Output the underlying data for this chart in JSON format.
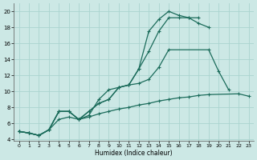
{
  "xlabel": "Humidex (Indice chaleur)",
  "background_color": "#cce8e5",
  "grid_color": "#aad4cf",
  "line_color": "#1a6b5a",
  "xlim": [
    -0.5,
    23.5
  ],
  "ylim": [
    3.8,
    21.0
  ],
  "yticks": [
    4,
    6,
    8,
    10,
    12,
    14,
    16,
    18,
    20
  ],
  "xticks": [
    0,
    1,
    2,
    3,
    4,
    5,
    6,
    7,
    8,
    9,
    10,
    11,
    12,
    13,
    14,
    15,
    16,
    17,
    18,
    19,
    20,
    21,
    22,
    23
  ],
  "series": [
    {
      "x": [
        0,
        1,
        2,
        3,
        4,
        5,
        6,
        7,
        8,
        9,
        10,
        11,
        12,
        13,
        14,
        15,
        16,
        17,
        18
      ],
      "y": [
        5.0,
        4.8,
        4.5,
        5.2,
        7.5,
        7.5,
        6.5,
        7.5,
        8.5,
        9.0,
        10.5,
        10.8,
        12.8,
        17.5,
        19.0,
        20.0,
        19.5,
        19.2,
        19.2
      ]
    },
    {
      "x": [
        0,
        1,
        2,
        3,
        4,
        5,
        6,
        7,
        8,
        9,
        10,
        11,
        12,
        13,
        14,
        15,
        16,
        17,
        18,
        19
      ],
      "y": [
        5.0,
        4.8,
        4.5,
        5.2,
        7.5,
        7.5,
        6.5,
        7.5,
        8.5,
        9.0,
        10.5,
        10.8,
        12.8,
        15.0,
        17.5,
        19.2,
        19.2,
        19.2,
        18.5,
        18.0
      ]
    },
    {
      "x": [
        0,
        1,
        2,
        3,
        4,
        5,
        6,
        7,
        8,
        9,
        10,
        11,
        12,
        13,
        14,
        15,
        19,
        20,
        21
      ],
      "y": [
        5.0,
        4.8,
        4.5,
        5.2,
        7.5,
        7.5,
        6.5,
        7.0,
        9.0,
        10.2,
        10.5,
        10.8,
        11.0,
        11.5,
        13.0,
        15.2,
        15.2,
        12.5,
        10.2
      ]
    },
    {
      "x": [
        0,
        1,
        2,
        3,
        4,
        5,
        6,
        7,
        8,
        9,
        10,
        11,
        12,
        13,
        14,
        15,
        16,
        17,
        18,
        19,
        22,
        23
      ],
      "y": [
        5.0,
        4.8,
        4.5,
        5.2,
        6.5,
        6.8,
        6.5,
        6.8,
        7.2,
        7.5,
        7.8,
        8.0,
        8.3,
        8.5,
        8.8,
        9.0,
        9.2,
        9.3,
        9.5,
        9.6,
        9.7,
        9.4
      ]
    }
  ]
}
